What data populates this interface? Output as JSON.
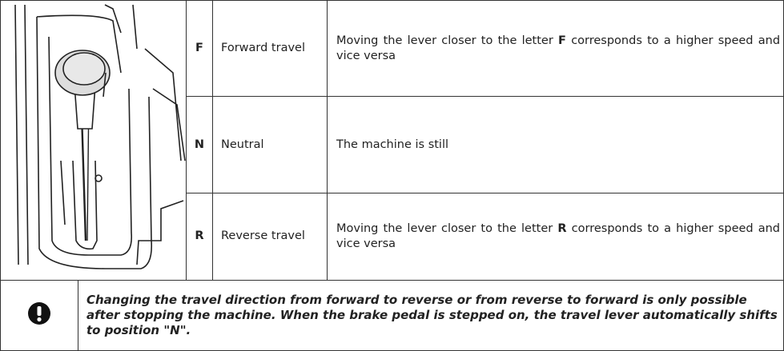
{
  "table": {
    "rows": [
      {
        "letter": "F",
        "name": "Forward travel",
        "description": {
          "before": "Moving the lever closer to the letter",
          "bold": "F",
          "after": "corresponds to a higher speed and vice versa"
        }
      },
      {
        "letter": "N",
        "name": "Neutral",
        "description": {
          "before": "The machine is still"
        }
      },
      {
        "letter": "R",
        "name": "Reverse travel",
        "description": {
          "before": "Moving the lever closer to the letter",
          "bold": "R",
          "after": "corresponds to a higher speed and vice versa"
        }
      }
    ]
  },
  "note": {
    "text": "Changing the travel direction from forward to reverse or from reverse to forward is only possible after stopping the machine. When the brake pedal is stepped on, the travel lever automatically shifts to position \"N\"."
  }
}
